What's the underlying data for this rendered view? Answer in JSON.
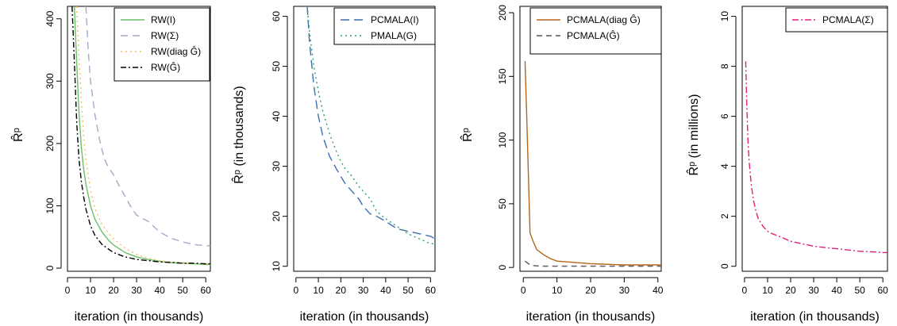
{
  "chart_data": [
    {
      "type": "line",
      "xlabel": "iteration (in thousands)",
      "ylabel": "R̂ᵖ",
      "xlim": [
        0,
        62
      ],
      "ylim": [
        -5,
        420
      ],
      "xticks": [
        0,
        10,
        20,
        30,
        40,
        50,
        60
      ],
      "yticks": [
        0,
        100,
        200,
        300,
        400
      ],
      "grid": false,
      "legend_position": "top-right",
      "series": [
        {
          "name": "RW(I)",
          "color": "#6abf69",
          "dash": "",
          "x": [
            3,
            4,
            5,
            6,
            7,
            8,
            10,
            12,
            15,
            18,
            20,
            25,
            30,
            35,
            40,
            45,
            50,
            55,
            60,
            62
          ],
          "y": [
            420,
            330,
            250,
            195,
            160,
            135,
            100,
            78,
            58,
            44,
            37,
            25,
            18,
            14,
            11,
            9,
            8,
            7,
            6,
            6
          ]
        },
        {
          "name": "RW(Σ)",
          "color": "#a8a8c8",
          "dash": "9,6",
          "x": [
            8,
            9,
            10,
            12,
            14,
            16,
            18,
            20,
            22,
            25,
            28,
            30,
            35,
            40,
            45,
            50,
            55,
            60,
            62
          ],
          "y": [
            420,
            350,
            300,
            245,
            205,
            175,
            160,
            150,
            135,
            115,
            95,
            85,
            75,
            58,
            48,
            42,
            38,
            36,
            36
          ]
        },
        {
          "name": "RW(diag Ĝ)",
          "color": "#f0c060",
          "dash": "2,4",
          "x": [
            4,
            5,
            6,
            7,
            8,
            10,
            12,
            15,
            18,
            20,
            25,
            30,
            35,
            40,
            45,
            50,
            55,
            60,
            62
          ],
          "y": [
            420,
            340,
            270,
            215,
            175,
            125,
            95,
            70,
            55,
            47,
            32,
            22,
            16,
            12,
            10,
            9,
            8,
            7,
            7
          ]
        },
        {
          "name": "RW(Ĝ)",
          "color": "#000000",
          "dash": "7,3,2,3",
          "x": [
            2,
            3,
            4,
            5,
            6,
            7,
            8,
            10,
            12,
            15,
            18,
            20,
            25,
            30,
            35,
            40,
            45,
            50,
            55,
            60,
            62
          ],
          "y": [
            420,
            330,
            235,
            175,
            140,
            115,
            95,
            68,
            52,
            38,
            30,
            25,
            18,
            14,
            12,
            10,
            9,
            8,
            8,
            7,
            7
          ]
        }
      ]
    },
    {
      "type": "line",
      "xlabel": "iteration (in thousands)",
      "ylabel": "R̂ᵖ (in thousands)",
      "xlim": [
        -1,
        62
      ],
      "ylim": [
        9,
        62
      ],
      "xticks": [
        0,
        10,
        20,
        30,
        40,
        50,
        60
      ],
      "yticks": [
        10,
        20,
        30,
        40,
        50,
        60
      ],
      "grid": false,
      "legend_position": "top-right",
      "series": [
        {
          "name": "PCMALA(I)",
          "color": "#3a6fb0",
          "dash": "11,6",
          "x": [
            5,
            6,
            8,
            10,
            12,
            15,
            18,
            20,
            22,
            25,
            28,
            30,
            33,
            36,
            40,
            45,
            50,
            55,
            60,
            62
          ],
          "y": [
            62,
            55,
            46,
            40,
            36,
            32,
            29.5,
            28,
            26.5,
            25,
            23.5,
            22,
            20.5,
            20,
            19,
            17.5,
            17,
            16.5,
            16,
            15.5
          ]
        },
        {
          "name": "PMALA(G)",
          "color": "#2aa070",
          "dash": "2,4",
          "x": [
            5,
            6,
            8,
            10,
            12,
            15,
            18,
            20,
            22,
            25,
            28,
            30,
            33,
            36,
            40,
            45,
            50,
            55,
            60,
            62
          ],
          "y": [
            62,
            57,
            50,
            45,
            41,
            36.5,
            33,
            31,
            29.5,
            28,
            26,
            25,
            23.5,
            21,
            19.5,
            18,
            16.5,
            15.5,
            14.5,
            14.5
          ]
        }
      ]
    },
    {
      "type": "line",
      "xlabel": "iteration (in thousands)",
      "ylabel": "R̂ᵖ",
      "xlim": [
        -1,
        41
      ],
      "ylim": [
        -3,
        205
      ],
      "xticks": [
        0,
        10,
        20,
        30,
        40
      ],
      "yticks": [
        0,
        50,
        100,
        150,
        200
      ],
      "grid": false,
      "legend_position": "top-right",
      "series": [
        {
          "name": "PCMALA(diag Ĝ)",
          "color": "#b5651d",
          "dash": "",
          "x": [
            0.5,
            1,
            2,
            3,
            4,
            6,
            8,
            10,
            15,
            20,
            25,
            30,
            35,
            41
          ],
          "y": [
            162,
            120,
            27,
            20,
            14,
            10,
            7,
            5,
            4,
            3,
            2.5,
            2,
            2,
            2
          ]
        },
        {
          "name": "PCMALA(Ĝ)",
          "color": "#555555",
          "dash": "7,5",
          "x": [
            0.5,
            1,
            2,
            3,
            5,
            10,
            20,
            30,
            41
          ],
          "y": [
            5,
            4,
            2,
            1.5,
            1,
            1,
            1,
            1,
            1
          ]
        }
      ]
    },
    {
      "type": "line",
      "xlabel": "iteration (in thousands)",
      "ylabel": "R̂ᵖ (in millions)",
      "xlim": [
        -1,
        62
      ],
      "ylim": [
        -0.2,
        10.4
      ],
      "xticks": [
        0,
        10,
        20,
        30,
        40,
        50,
        60
      ],
      "yticks": [
        0,
        2,
        4,
        6,
        8,
        10
      ],
      "grid": false,
      "legend_position": "top-right",
      "series": [
        {
          "name": "PCMALA(Σ)",
          "color": "#e0207a",
          "dash": "8,3,2,3",
          "x": [
            0.5,
            1,
            1.5,
            2,
            3,
            4,
            5,
            6,
            8,
            10,
            12,
            15,
            20,
            25,
            30,
            35,
            40,
            45,
            50,
            55,
            60,
            62
          ],
          "y": [
            8.2,
            6.4,
            5.0,
            4.2,
            3.2,
            2.6,
            2.2,
            1.9,
            1.6,
            1.4,
            1.3,
            1.2,
            1.0,
            0.9,
            0.8,
            0.75,
            0.7,
            0.65,
            0.6,
            0.58,
            0.55,
            0.55
          ]
        }
      ]
    }
  ]
}
